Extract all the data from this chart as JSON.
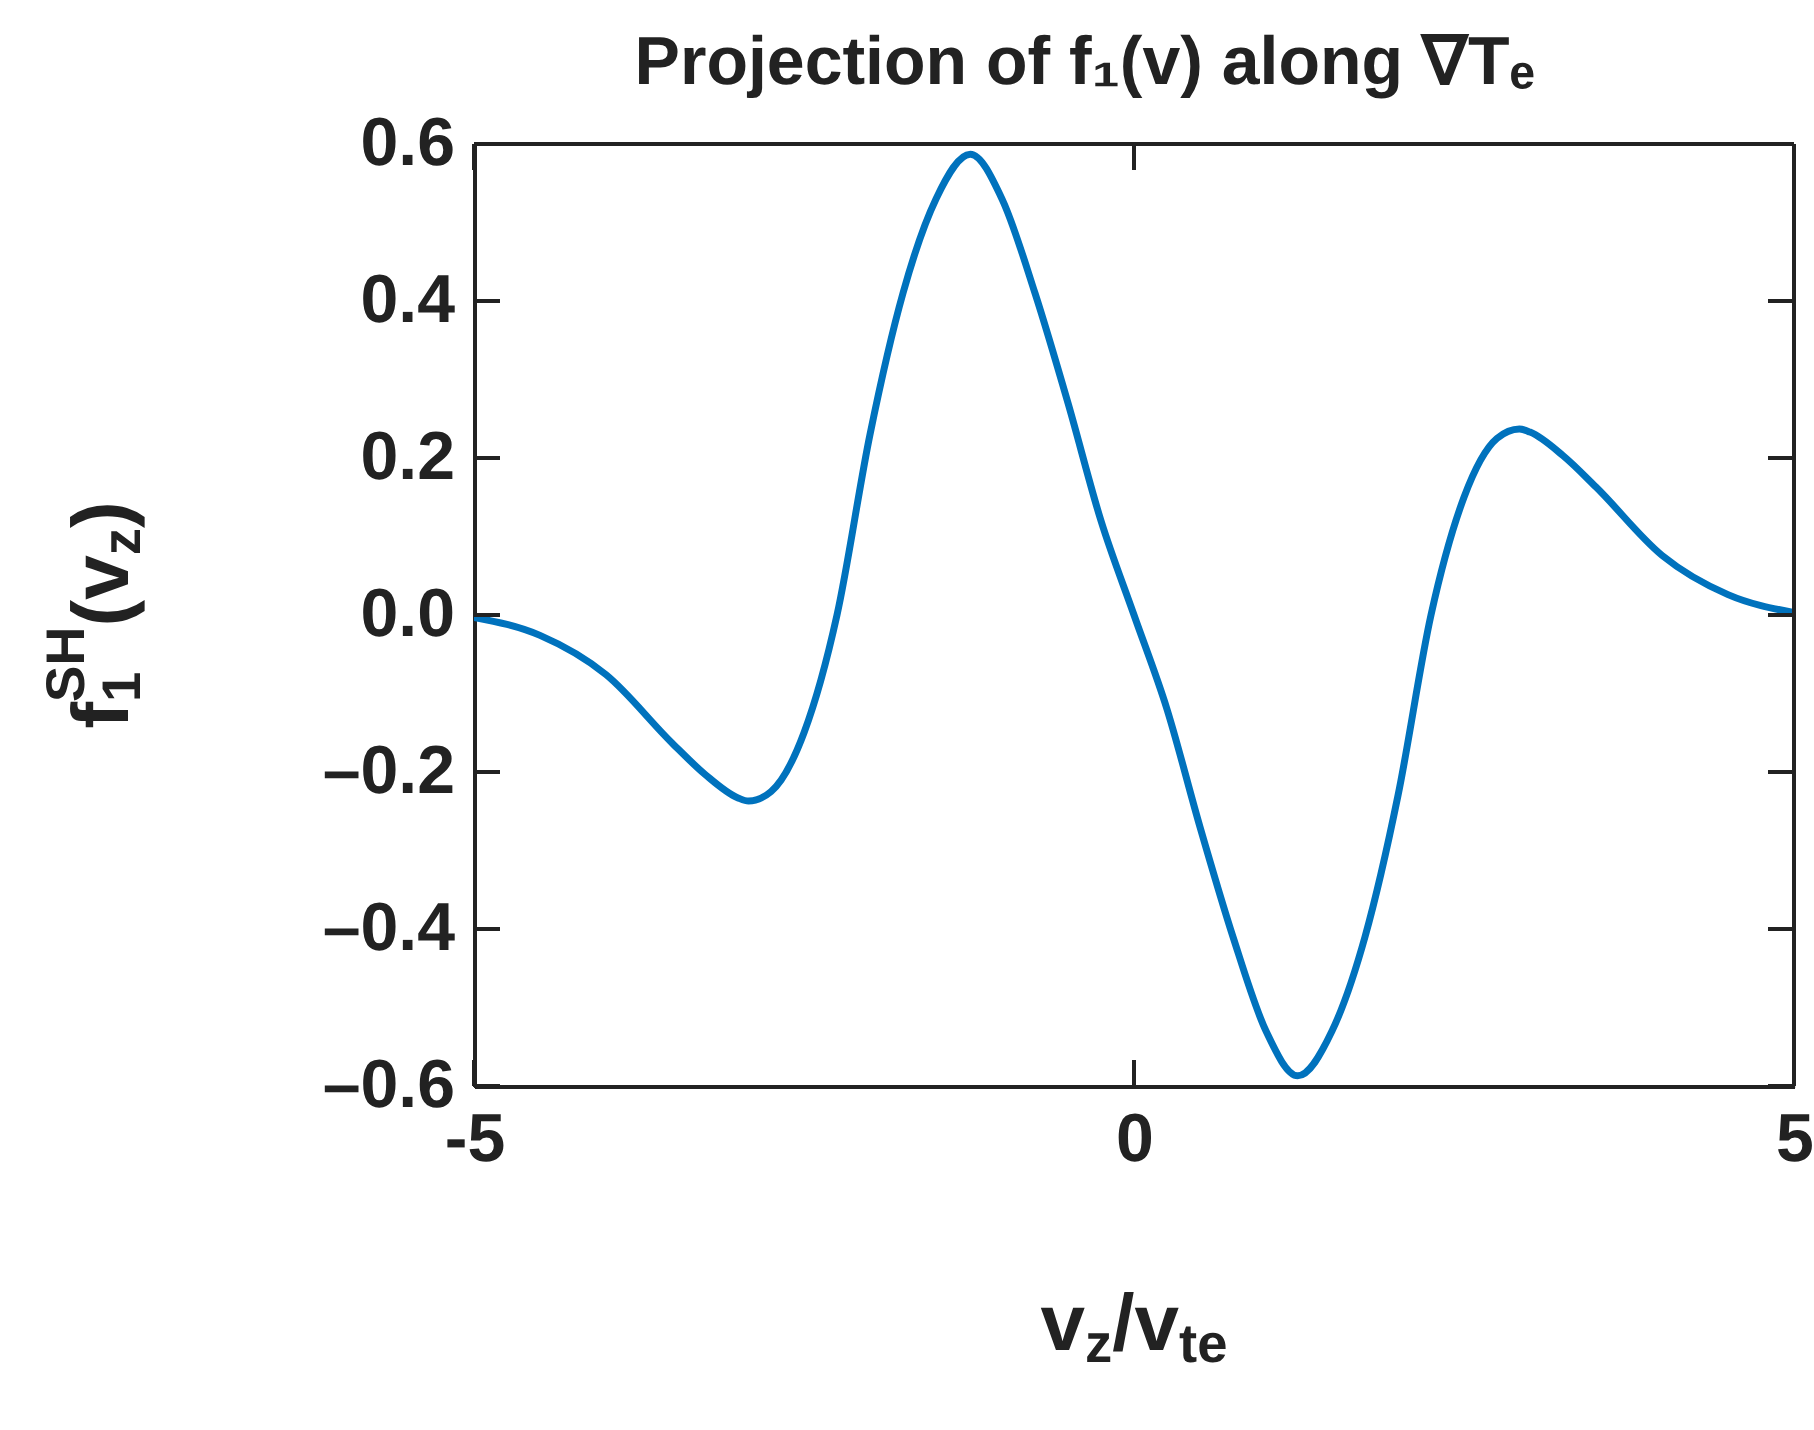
{
  "chart_data": {
    "type": "line",
    "title": "Projection of f₁(v) along ∇Tₑ",
    "xlabel": "v$_{z}$/v$_{te}$",
    "ylabel": "f$_{1}$$^{SH}$(v$_{z}$)",
    "x": [
      -5,
      -4.5,
      -4,
      -3.5,
      -3.25,
      -3,
      -2.92,
      -2.75,
      -2.5,
      -2.25,
      -2,
      -1.75,
      -1.5,
      -1.24,
      -1,
      -0.75,
      -0.5,
      -0.25,
      0,
      0.25,
      0.5,
      0.75,
      1,
      1.24,
      1.5,
      1.75,
      2,
      2.25,
      2.5,
      2.75,
      2.92,
      3,
      3.25,
      3.5,
      4,
      4.5,
      5
    ],
    "series": [
      {
        "color": "#0072bd",
        "values": [
          -0.003,
          -0.026,
          -0.076,
          -0.163,
          -0.203,
          -0.233,
          -0.237,
          -0.225,
          -0.15,
          0,
          0.23,
          0.41,
          0.53,
          0.587,
          0.53,
          0.41,
          0.27,
          0.12,
          0,
          -0.12,
          -0.27,
          -0.41,
          -0.53,
          -0.587,
          -0.53,
          -0.41,
          -0.23,
          0,
          0.15,
          0.225,
          0.237,
          0.233,
          0.203,
          0.163,
          0.076,
          0.026,
          0.003
        ]
      }
    ],
    "xlim": [
      -5,
      5
    ],
    "ylim": [
      -0.6,
      0.6
    ],
    "xticks": [
      -5,
      0,
      5
    ],
    "yticks": [
      {
        "value": -0.6,
        "label": "–0.6"
      },
      {
        "value": -0.4,
        "label": "–0.4"
      },
      {
        "value": -0.2,
        "label": "–0.2"
      },
      {
        "value": 0,
        "label": "0.0"
      },
      0.2,
      0.4,
      0.6
    ],
    "grid": false,
    "marker": "none",
    "line_style": "solid"
  }
}
